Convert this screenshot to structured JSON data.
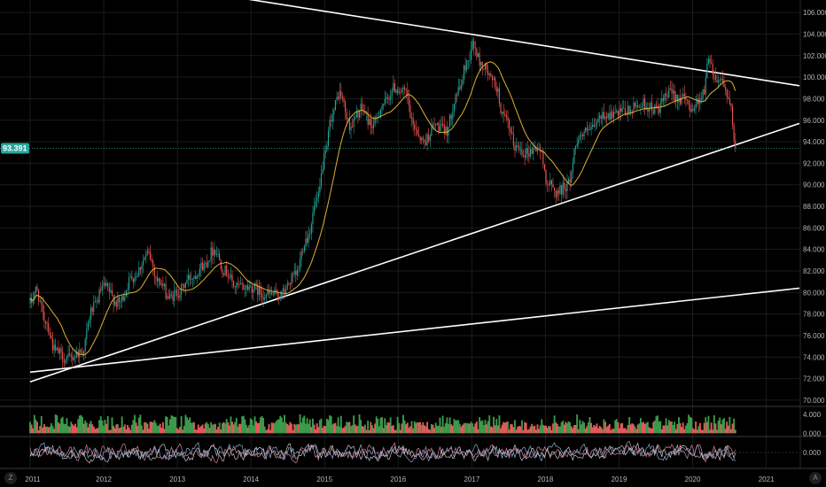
{
  "chart_data": {
    "type": "candlestick",
    "title": "",
    "x_ticks": [
      "2011",
      "2012",
      "2013",
      "2014",
      "2015",
      "2016",
      "2017",
      "2018",
      "2019",
      "2020",
      "2021"
    ],
    "y_ticks": [
      "70.000",
      "72.000",
      "74.000",
      "76.000",
      "78.000",
      "80.000",
      "82.000",
      "84.000",
      "86.000",
      "88.000",
      "90.000",
      "92.000",
      "94.000",
      "96.000",
      "98.000",
      "100.000",
      "102.000",
      "104.000",
      "106.000"
    ],
    "ylim": [
      69.5,
      107
    ],
    "xlim": [
      2011.0,
      2021.45
    ],
    "last_price_label": "93.391",
    "last_price": 93.391,
    "grid": true,
    "colors": {
      "up": "#26a69a",
      "down": "#ef5350",
      "ma": "#e0b030",
      "trendline": "#ffffff",
      "price_tag": "#26a69a"
    },
    "ma_period": 20,
    "price_anchors": [
      [
        2011.0,
        79.0
      ],
      [
        2011.08,
        80.2
      ],
      [
        2011.2,
        77.5
      ],
      [
        2011.35,
        74.5
      ],
      [
        2011.5,
        73.8
      ],
      [
        2011.7,
        74.5
      ],
      [
        2011.85,
        78.5
      ],
      [
        2012.0,
        80.5
      ],
      [
        2012.2,
        79.0
      ],
      [
        2012.4,
        81.5
      ],
      [
        2012.6,
        83.5
      ],
      [
        2012.75,
        81.0
      ],
      [
        2012.9,
        79.5
      ],
      [
        2013.0,
        80.0
      ],
      [
        2013.2,
        81.5
      ],
      [
        2013.35,
        82.5
      ],
      [
        2013.5,
        84.0
      ],
      [
        2013.65,
        82.0
      ],
      [
        2013.8,
        80.5
      ],
      [
        2014.0,
        80.5
      ],
      [
        2014.2,
        79.8
      ],
      [
        2014.4,
        79.8
      ],
      [
        2014.6,
        81.5
      ],
      [
        2014.75,
        85.0
      ],
      [
        2014.9,
        88.5
      ],
      [
        2015.0,
        92.5
      ],
      [
        2015.1,
        96.5
      ],
      [
        2015.2,
        98.5
      ],
      [
        2015.35,
        95.5
      ],
      [
        2015.5,
        97.0
      ],
      [
        2015.65,
        95.5
      ],
      [
        2015.8,
        97.5
      ],
      [
        2015.95,
        99.0
      ],
      [
        2016.1,
        98.5
      ],
      [
        2016.2,
        95.5
      ],
      [
        2016.35,
        94.0
      ],
      [
        2016.5,
        95.5
      ],
      [
        2016.65,
        95.0
      ],
      [
        2016.8,
        98.5
      ],
      [
        2016.95,
        101.5
      ],
      [
        2017.0,
        103.0
      ],
      [
        2017.15,
        101.0
      ],
      [
        2017.3,
        99.5
      ],
      [
        2017.45,
        96.0
      ],
      [
        2017.6,
        93.5
      ],
      [
        2017.75,
        93.0
      ],
      [
        2017.9,
        93.5
      ],
      [
        2018.05,
        90.0
      ],
      [
        2018.15,
        89.3
      ],
      [
        2018.3,
        90.0
      ],
      [
        2018.45,
        94.5
      ],
      [
        2018.6,
        95.0
      ],
      [
        2018.8,
        96.5
      ],
      [
        2018.95,
        96.5
      ],
      [
        2019.1,
        96.8
      ],
      [
        2019.3,
        97.5
      ],
      [
        2019.5,
        97.0
      ],
      [
        2019.7,
        98.5
      ],
      [
        2019.85,
        98.0
      ],
      [
        2020.0,
        97.2
      ],
      [
        2020.15,
        98.5
      ],
      [
        2020.22,
        102.0
      ],
      [
        2020.3,
        100.0
      ],
      [
        2020.4,
        99.8
      ],
      [
        2020.5,
        97.5
      ],
      [
        2020.58,
        93.4
      ]
    ],
    "trendlines": [
      {
        "x1": 2013.9,
        "y1": 107.3,
        "x2": 2021.45,
        "y2": 99.2
      },
      {
        "x1": 2011.0,
        "y1": 71.7,
        "x2": 2021.45,
        "y2": 95.7
      },
      {
        "x1": 2011.0,
        "y1": 72.6,
        "x2": 2021.45,
        "y2": 80.4
      }
    ],
    "indicator1": {
      "y_ticks": [
        "4.000",
        "0.000"
      ],
      "ylim": [
        -0.5,
        5.5
      ]
    },
    "indicator2": {
      "y_ticks": [
        "0.000"
      ],
      "ylim": [
        -3,
        3
      ]
    }
  },
  "corner_left": "Z",
  "corner_right": "A"
}
